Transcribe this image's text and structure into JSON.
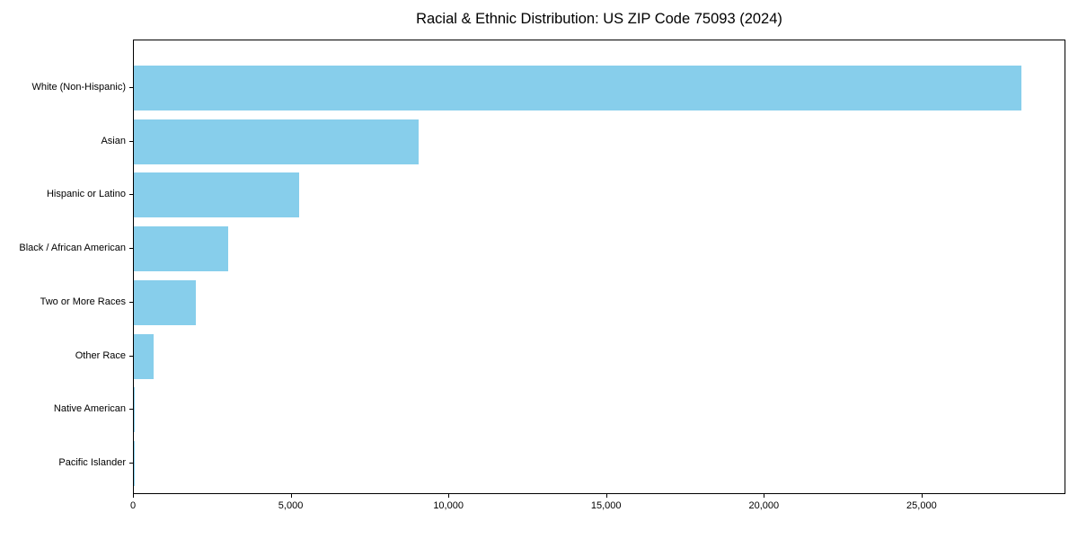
{
  "chart_data": {
    "type": "bar",
    "orientation": "horizontal",
    "title": "Racial & Ethnic Distribution: US ZIP Code 75093 (2024)",
    "categories": [
      "White (Non-Hispanic)",
      "Asian",
      "Hispanic or Latino",
      "Black / African American",
      "Two or More Races",
      "Other Race",
      "Native American",
      "Pacific Islander"
    ],
    "values": [
      28150,
      9030,
      5240,
      2990,
      1960,
      630,
      40,
      10
    ],
    "xlabel": "",
    "ylabel": "",
    "xlim": [
      0,
      29560
    ],
    "x_ticks": [
      {
        "value": 0,
        "label": "0"
      },
      {
        "value": 5000,
        "label": "5,000"
      },
      {
        "value": 10000,
        "label": "10,000"
      },
      {
        "value": 15000,
        "label": "15,000"
      },
      {
        "value": 20000,
        "label": "20,000"
      },
      {
        "value": 25000,
        "label": "25,000"
      }
    ],
    "bar_color": "#87ceeb",
    "axis_color": "#000000",
    "text_color": "#000000",
    "grid": false,
    "legend": false
  }
}
